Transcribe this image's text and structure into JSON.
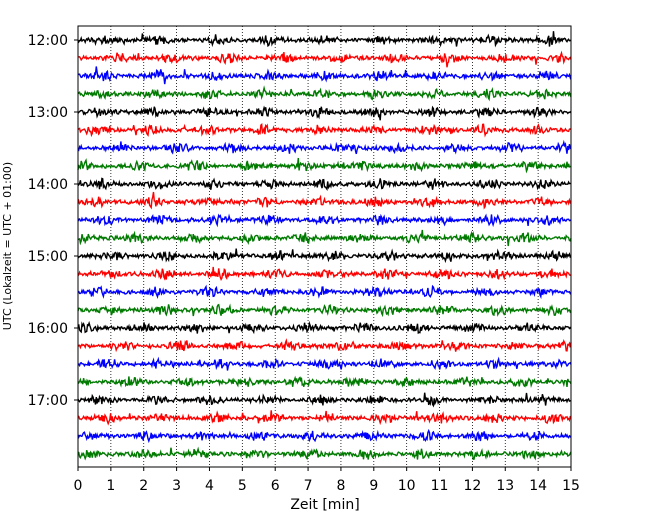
{
  "chart_data": {
    "type": "line",
    "subtype": "seismogram-helicorder",
    "xlabel": "Zeit  [min]",
    "ylabel": "UTC (Lokalzeit = UTC + 01:00)",
    "xlim": [
      0,
      15
    ],
    "x_ticks": [
      "0",
      "1",
      "2",
      "3",
      "4",
      "5",
      "6",
      "7",
      "8",
      "9",
      "10",
      "11",
      "12",
      "13",
      "14",
      "15"
    ],
    "y_ticks": [
      "12:00",
      "13:00",
      "14:00",
      "15:00",
      "16:00",
      "17:00"
    ],
    "rows_per_hour": 4,
    "trace_count": 24,
    "trace_start_times": [
      "12:00",
      "12:15",
      "12:30",
      "12:45",
      "13:00",
      "13:15",
      "13:30",
      "13:45",
      "14:00",
      "14:15",
      "14:30",
      "14:45",
      "15:00",
      "15:15",
      "15:30",
      "15:45",
      "16:00",
      "16:15",
      "16:30",
      "16:45",
      "17:00",
      "17:15",
      "17:30",
      "17:45"
    ],
    "trace_colors": [
      "#000000",
      "#ff0000",
      "#0000ff",
      "#007a00"
    ],
    "grid": "vertical-dotted"
  }
}
